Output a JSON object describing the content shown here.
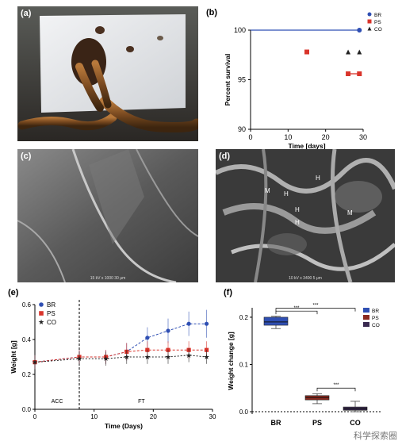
{
  "figure": {
    "panels": {
      "a": "(a)",
      "b": "(b)",
      "c": "(c)",
      "d": "(d)",
      "e": "(e)",
      "f": "(f)"
    },
    "sem_c_caption": "15 kV  x 1000      30 μm",
    "sem_d_caption": "10 kV  x 3400      5 μm",
    "sem_d_markers": [
      "M",
      "H",
      "H",
      "H",
      "H",
      "M"
    ],
    "watermark": "科学探索圈"
  },
  "chart_data": [
    {
      "panel": "b",
      "type": "line",
      "xlabel": "Time [days]",
      "ylabel": "Percent survival",
      "xlim": [
        0,
        30
      ],
      "ylim": [
        90,
        100
      ],
      "xticks": [
        0,
        10,
        20,
        30
      ],
      "yticks": [
        90,
        95,
        100
      ],
      "legend": "top-right",
      "series": [
        {
          "name": "BR",
          "color": "#2f4fb3",
          "marker": "circle",
          "x": [
            0,
            29
          ],
          "y": [
            100,
            100
          ]
        },
        {
          "name": "PS",
          "color": "#d9342b",
          "marker": "square",
          "x": [
            15,
            26,
            29
          ],
          "y": [
            97.8,
            95.6,
            95.6
          ]
        },
        {
          "name": "CO",
          "color": "#222222",
          "marker": "triangle",
          "x": [
            26,
            29
          ],
          "y": [
            97.8,
            97.8
          ]
        }
      ]
    },
    {
      "panel": "e",
      "type": "line",
      "xlabel": "Time (Days)",
      "ylabel": "Weight [g]",
      "xlim": [
        0,
        30
      ],
      "ylim": [
        0,
        0.6
      ],
      "xticks": [
        0,
        10,
        20,
        30
      ],
      "yticks": [
        0.0,
        0.2,
        0.4,
        0.6
      ],
      "divider_x": 7.5,
      "phase_labels": [
        "ACC",
        "FT"
      ],
      "legend": "top-left",
      "series": [
        {
          "name": "BR",
          "color": "#2f4fb3",
          "marker": "circle",
          "x": [
            0,
            7.5,
            12,
            15.5,
            19,
            22.5,
            26,
            29
          ],
          "y": [
            0.27,
            0.3,
            0.3,
            0.33,
            0.41,
            0.45,
            0.49,
            0.49
          ],
          "err": [
            0.04,
            0.04,
            0.04,
            0.05,
            0.06,
            0.07,
            0.07,
            0.08
          ]
        },
        {
          "name": "PS",
          "color": "#d9342b",
          "marker": "square",
          "x": [
            0,
            7.5,
            12,
            15.5,
            19,
            22.5,
            26,
            29
          ],
          "y": [
            0.27,
            0.3,
            0.3,
            0.33,
            0.34,
            0.34,
            0.34,
            0.34
          ],
          "err": [
            0.04,
            0.04,
            0.04,
            0.05,
            0.05,
            0.05,
            0.05,
            0.05
          ]
        },
        {
          "name": "CO",
          "color": "#222222",
          "marker": "star",
          "x": [
            0,
            7.5,
            12,
            15.5,
            19,
            22.5,
            26,
            29
          ],
          "y": [
            0.27,
            0.29,
            0.29,
            0.3,
            0.3,
            0.3,
            0.31,
            0.3
          ],
          "err": [
            0.04,
            0.04,
            0.04,
            0.04,
            0.04,
            0.04,
            0.04,
            0.04
          ]
        }
      ]
    },
    {
      "panel": "f",
      "type": "box",
      "ylabel": "Weight change [g]",
      "categories": [
        "BR",
        "PS",
        "CO"
      ],
      "ylim": [
        -0.005,
        0.22
      ],
      "yticks": [
        0.0,
        0.1,
        0.2
      ],
      "legend": "top-right",
      "boxes": [
        {
          "name": "BR",
          "color": "#2f4fb3",
          "min": 0.176,
          "q1": 0.183,
          "median": 0.19,
          "q3": 0.2,
          "max": 0.202
        },
        {
          "name": "PS",
          "color": "#8b2a20",
          "min": 0.017,
          "q1": 0.025,
          "median": 0.03,
          "q3": 0.034,
          "max": 0.038
        },
        {
          "name": "CO",
          "color": "#3a2a50",
          "min": 0.0,
          "q1": 0.003,
          "median": 0.006,
          "q3": 0.01,
          "max": 0.022
        }
      ],
      "significance": [
        {
          "pair": [
            "BR",
            "PS"
          ],
          "label": "***"
        },
        {
          "pair": [
            "BR",
            "CO"
          ],
          "label": "***"
        },
        {
          "pair": [
            "PS",
            "CO"
          ],
          "label": "***"
        }
      ]
    }
  ]
}
